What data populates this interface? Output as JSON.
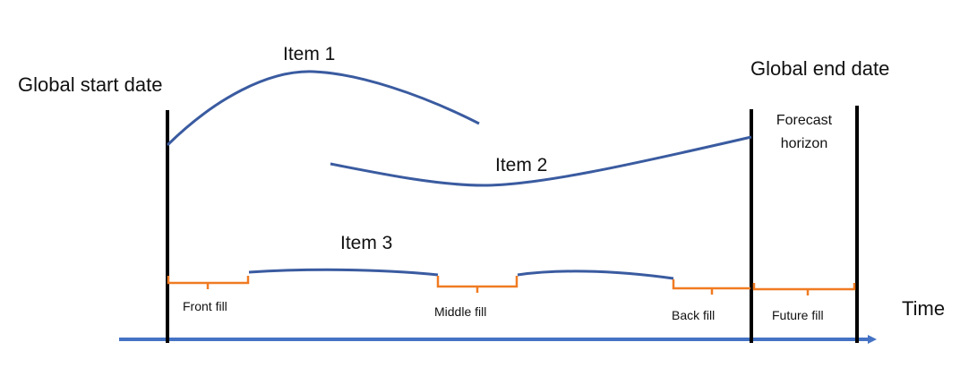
{
  "labels": {
    "global_start": "Global start date",
    "global_end": "Global end date",
    "forecast_line1": "Forecast",
    "forecast_line2": "horizon",
    "time": "Time"
  },
  "items": {
    "item1": "Item 1",
    "item2": "Item 2",
    "item3": "Item 3"
  },
  "fills": {
    "front": "Front fill",
    "middle": "Middle fill",
    "back": "Back fill",
    "future": "Future fill"
  },
  "colors": {
    "series": "#3a5ba0",
    "fill_bracket": "#f07b22",
    "time_arrow": "#4472c4",
    "boundary": "#000000"
  }
}
